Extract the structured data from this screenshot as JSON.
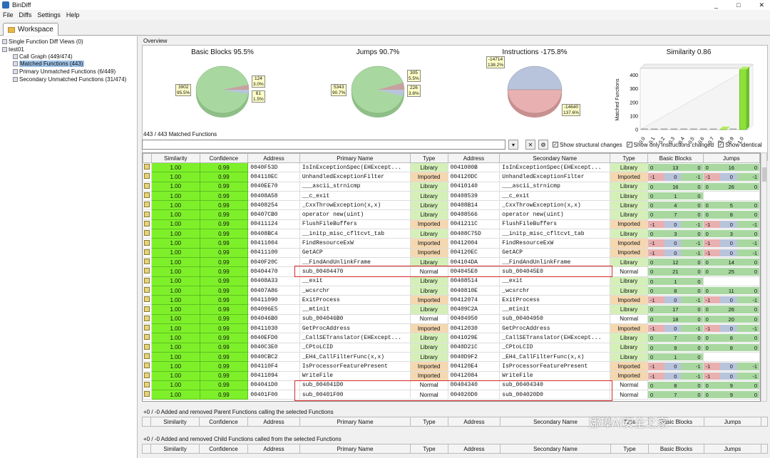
{
  "window": {
    "title": "BinDiff",
    "controls": [
      "_",
      "□",
      "✕"
    ]
  },
  "menu": {
    "items": [
      "File",
      "Diffs",
      "Settings",
      "Help"
    ]
  },
  "workspace_tab": "Workspace",
  "tree": {
    "items": [
      {
        "label": "Single Function Diff Views (0)"
      },
      {
        "label": "test01"
      },
      {
        "label": "Call Graph (449/474)"
      },
      {
        "label": "Matched Functions (443)"
      },
      {
        "label": "Primary Unmatched Functions (6/449)"
      },
      {
        "label": "Secondary Unmatched Functions (31/474)"
      }
    ]
  },
  "overview": {
    "label": "Overview",
    "pies": [
      {
        "title": "Basic Blocks 95.5%",
        "callouts": [
          "3902\n95.5%",
          "124\n3.0%",
          "61\n1.5%"
        ]
      },
      {
        "title": "Jumps 90.7%",
        "callouts": [
          "5343\n90.7%",
          "305\n5.5%",
          "226\n3.8%"
        ]
      },
      {
        "title": "Instructions -175.8%",
        "callouts": [
          "-14714\n138.2%",
          "-14640\n137.6%"
        ]
      }
    ],
    "similarity_chart": {
      "title": "Similarity 0.86",
      "ylabel": "Matched Functions",
      "yticks": [
        "400",
        "300",
        "200",
        "100",
        "0"
      ],
      "xticks": [
        "0.0",
        "0.1",
        "0.2",
        "0.3",
        "0.4",
        "0.5",
        "0.6",
        "0.7",
        "0.8",
        "0.9",
        "1.0"
      ]
    }
  },
  "chart_data": {
    "type": "bar",
    "title": "Similarity 0.86",
    "ylabel": "Matched Functions",
    "categories": [
      "0.0",
      "0.1",
      "0.2",
      "0.3",
      "0.4",
      "0.5",
      "0.6",
      "0.7",
      "0.8",
      "0.9",
      "1.0"
    ],
    "values": [
      0,
      0,
      0,
      0,
      0,
      0,
      0,
      0,
      2,
      0,
      441
    ],
    "ylim": [
      0,
      450
    ]
  },
  "matched": {
    "label": "443 / 443 Matched Functions",
    "checkboxes": [
      "Show structural changes",
      "Show only instructions changed",
      "Show identical"
    ],
    "columns": [
      "Similarity",
      "Confidence",
      "Address",
      "Primary Name",
      "Type",
      "Address",
      "Secondary Name",
      "Type",
      "Basic Blocks",
      "Jumps"
    ],
    "rows": [
      [
        "1.00",
        "0.99",
        "0040F53D",
        "IsInExceptionSpec(EHExcept...",
        "Library",
        "0041080B",
        "IsInExceptionSpec(EHExcept...",
        "Library",
        "0",
        "13",
        "0",
        "0",
        "16",
        "0"
      ],
      [
        "1.00",
        "0.99",
        "004110EC",
        "UnhandledExceptionFilter",
        "Imported",
        "004120DC",
        "UnhandledExceptionFilter",
        "Imported",
        "-1",
        "0",
        "-1",
        "-1",
        "0",
        "-1"
      ],
      [
        "1.00",
        "0.99",
        "0040EE70",
        "___ascii_strnicmp",
        "Library",
        "00410140",
        "___ascii_strnicmp",
        "Library",
        "0",
        "16",
        "0",
        "0",
        "26",
        "0"
      ],
      [
        "1.00",
        "0.99",
        "00408A58",
        "__c_exit",
        "Library",
        "00408539",
        "__c_exit",
        "Library",
        "0",
        "1",
        "0",
        "",
        "",
        ""
      ],
      [
        "1.00",
        "0.99",
        "00408254",
        "_CxxThrowException(x,x)",
        "Library",
        "00408B14",
        "_CxxThrowException(x,x)",
        "Library",
        "0",
        "4",
        "0",
        "0",
        "5",
        "0"
      ],
      [
        "1.00",
        "0.99",
        "00407CB0",
        "operator new(uint)",
        "Library",
        "00408566",
        "operator new(uint)",
        "Library",
        "0",
        "7",
        "0",
        "0",
        "8",
        "0"
      ],
      [
        "1.00",
        "0.99",
        "00411124",
        "FlushFileBuffers",
        "Imported",
        "0041211C",
        "FlushFileBuffers",
        "Imported",
        "-1",
        "0",
        "-1",
        "-1",
        "0",
        "-1"
      ],
      [
        "1.00",
        "0.99",
        "00408BC4",
        "__initp_misc_cfltcvt_tab",
        "Library",
        "00408C75D",
        "__initp_misc_cfltcvt_tab",
        "Library",
        "0",
        "3",
        "0",
        "0",
        "3",
        "0"
      ],
      [
        "1.00",
        "0.99",
        "00411004",
        "FindResourceExW",
        "Imported",
        "00412004",
        "FindResourceExW",
        "Imported",
        "-1",
        "0",
        "-1",
        "-1",
        "0",
        "-1"
      ],
      [
        "1.00",
        "0.99",
        "00411100",
        "GetACP",
        "Imported",
        "004120EC",
        "GetACP",
        "Imported",
        "-1",
        "0",
        "-1",
        "-1",
        "0",
        "-1"
      ],
      [
        "1.00",
        "0.99",
        "0040F20C",
        "__FindAndUnlinkFrame",
        "Library",
        "004104DA",
        "__FindAndUnlinkFrame",
        "Library",
        "0",
        "12",
        "0",
        "0",
        "14",
        "0"
      ],
      [
        "1.00",
        "0.99",
        "00404470",
        "sub_00404470",
        "Normal",
        "004045E0",
        "sub_004045E0",
        "Normal",
        "0",
        "21",
        "0",
        "0",
        "25",
        "0"
      ],
      [
        "1.00",
        "0.99",
        "00408A33",
        "__exit",
        "Library",
        "00408514",
        "__exit",
        "Library",
        "0",
        "1",
        "0",
        "",
        "",
        ""
      ],
      [
        "1.00",
        "0.99",
        "00407A86",
        "_wcsrchr",
        "Library",
        "0040810E",
        "_wcsrchr",
        "Library",
        "0",
        "8",
        "0",
        "0",
        "11",
        "0"
      ],
      [
        "1.00",
        "0.99",
        "00411090",
        "ExitProcess",
        "Imported",
        "00412074",
        "ExitProcess",
        "Imported",
        "-1",
        "0",
        "-1",
        "-1",
        "0",
        "-1"
      ],
      [
        "1.00",
        "0.99",
        "004096E5",
        "__mtinit",
        "Library",
        "00409C2A",
        "__mtinit",
        "Library",
        "0",
        "17",
        "0",
        "0",
        "26",
        "0"
      ],
      [
        "1.00",
        "0.99",
        "004046B0",
        "sub_004046B0",
        "Normal",
        "00404950",
        "sub_00404950",
        "Normal",
        "0",
        "18",
        "0",
        "0",
        "20",
        "0"
      ],
      [
        "1.00",
        "0.99",
        "00411030",
        "GetProcAddress",
        "Imported",
        "00412030",
        "GetProcAddress",
        "Imported",
        "-1",
        "0",
        "-1",
        "-1",
        "0",
        "-1"
      ],
      [
        "1.00",
        "0.99",
        "0040EFD0",
        "_CallSETranslator(EHExcept...",
        "Library",
        "0041029E",
        "_CallSETranslator(EHExcept...",
        "Library",
        "0",
        "7",
        "0",
        "0",
        "8",
        "0"
      ],
      [
        "1.00",
        "0.99",
        "0040C3E0",
        "_CPtoLCID",
        "Library",
        "0040D21C",
        "_CPtoLCID",
        "Library",
        "0",
        "9",
        "0",
        "0",
        "8",
        "0"
      ],
      [
        "1.00",
        "0.99",
        "0040CBC2",
        "_EH4_CallFilterFunc(x,x)",
        "Library",
        "0040D9F2",
        "_EH4_CallFilterFunc(x,x)",
        "Library",
        "0",
        "1",
        "0",
        "",
        "",
        ""
      ],
      [
        "1.00",
        "0.99",
        "004110F4",
        "IsProcessorFeaturePresent",
        "Imported",
        "004120E4",
        "IsProcessorFeaturePresent",
        "Imported",
        "-1",
        "0",
        "-1",
        "-1",
        "0",
        "-1"
      ],
      [
        "1.00",
        "0.99",
        "00411094",
        "WriteFile",
        "Imported",
        "00412084",
        "WriteFile",
        "Imported",
        "-1",
        "0",
        "-1",
        "-1",
        "0",
        "-1"
      ],
      [
        "1.00",
        "0.99",
        "004041D0",
        "sub_004041D0",
        "Normal",
        "00404340",
        "sub_00404340",
        "Normal",
        "0",
        "8",
        "0",
        "0",
        "9",
        "0"
      ],
      [
        "1.00",
        "0.99",
        "00401F00",
        "sub_00401F00",
        "Normal",
        "004020D0",
        "sub_004020D0",
        "Normal",
        "0",
        "7",
        "0",
        "0",
        "9",
        "0"
      ]
    ]
  },
  "parent_panel": {
    "label": "+0 / -0 Added and removed Parent Functions calling the selected Functions",
    "columns": [
      "Similarity",
      "Confidence",
      "Address",
      "Primary Name",
      "Type",
      "Address",
      "Secondary Name",
      "Type",
      "Basic Blocks",
      "Jumps"
    ]
  },
  "child_panel": {
    "label": "+0 / -0 Added and removed Child Functions called from the selected Functions",
    "columns": [
      "Similarity",
      "Confidence",
      "Address",
      "Primary Name",
      "Type",
      "Address",
      "Secondary Name",
      "Type",
      "Basic Blocks",
      "Jumps"
    ]
  },
  "watermark": "娜璋AI安全之家"
}
